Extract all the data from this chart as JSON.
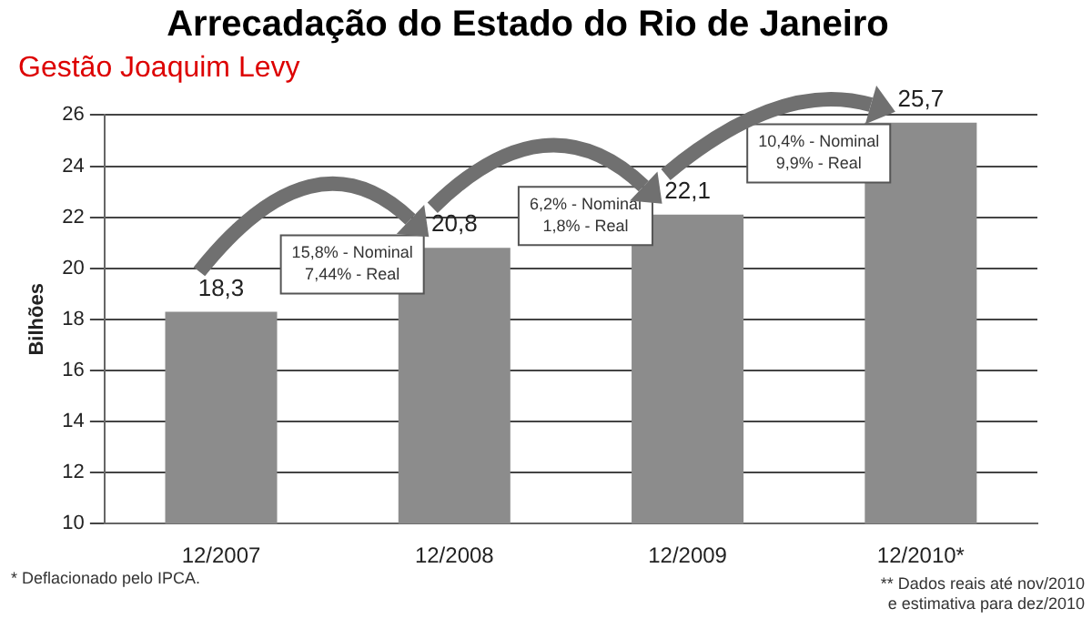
{
  "chart_data": {
    "type": "bar",
    "title": "Arrecadação do Estado do Rio de Janeiro",
    "subtitle": "Gestão Joaquim Levy",
    "ylabel": "Bilhões",
    "categories": [
      "12/2007",
      "12/2008",
      "12/2009",
      "12/2010*"
    ],
    "values": [
      18.3,
      20.8,
      22.1,
      25.7
    ],
    "value_labels": [
      "18,3",
      "20,8",
      "22,1",
      "25,7"
    ],
    "color": "#8c8c8c",
    "ylim": [
      10,
      26
    ],
    "yticks": [
      10,
      12,
      14,
      16,
      18,
      20,
      22,
      24,
      26
    ],
    "grid": "y",
    "legend": false,
    "annotations": [
      "15,8% - Nominal\n7,44% - Real",
      "6,2% - Nominal\n1,8% - Real",
      "10,4% - Nominal\n9,9% - Real",
      "* Deflacionado pelo IPCA.",
      "** Dados reais até nov/2010\ne estimativa para dez/2010"
    ]
  }
}
